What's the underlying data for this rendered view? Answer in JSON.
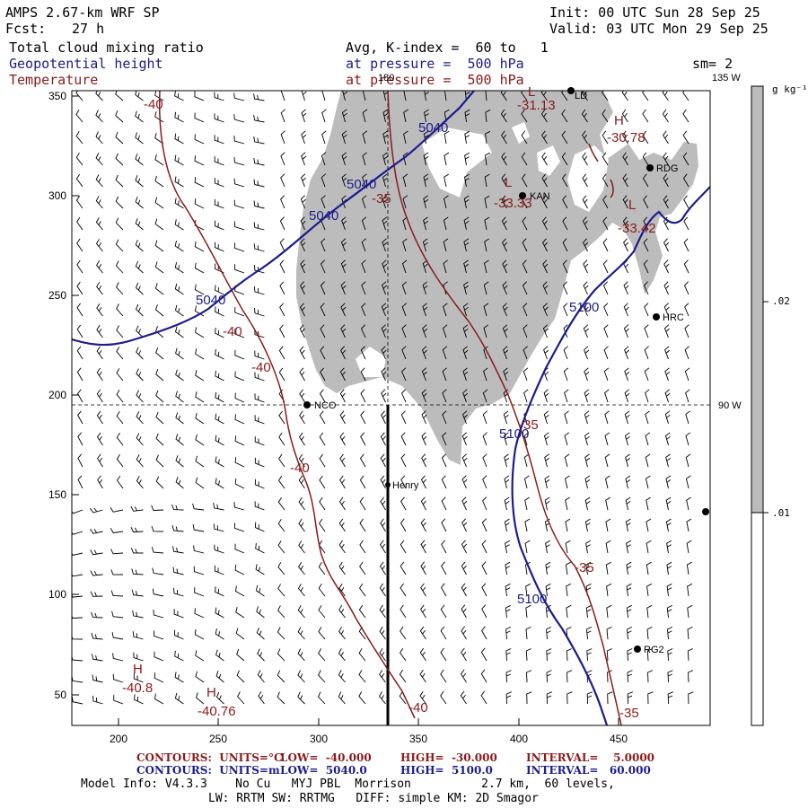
{
  "header": {
    "model": "AMPS 2.67-km WRF SP",
    "fcst_label": "Fcst:",
    "fcst_value": "27 h",
    "init": "Init: 00 UTC Sun 28 Sep 25",
    "valid": "Valid: 03 UTC Mon 29 Sep 25",
    "field1": "Total cloud mixing ratio",
    "field2": "Geopotential height",
    "field3": "Temperature",
    "avg": "Avg, K-index =  60 to   1",
    "pressure1": "at pressure =  500 hPa",
    "pressure2": "at pressure =  500 hPa",
    "sm": "sm= 2"
  },
  "colors": {
    "height_contour": "#1c1c8c",
    "temperature_contour": "#8b1a1a",
    "cloud_fill": "#bcbcbc",
    "colorbar_upper": "#bcbcbc"
  },
  "map": {
    "x_ticks": [
      "200",
      "250",
      "300",
      "350",
      "400",
      "450"
    ],
    "y_ticks": [
      "50",
      "100",
      "150",
      "200",
      "250",
      "300",
      "350"
    ],
    "meridian_180": "180",
    "meridian_135w": "135 W",
    "meridian_90w": "90 W",
    "stations": [
      {
        "id": "NCO",
        "label": "NCO"
      },
      {
        "id": "Henry",
        "label": "Henry"
      },
      {
        "id": "KAN",
        "label": "KAN"
      },
      {
        "id": "RDG",
        "label": "RDG"
      },
      {
        "id": "HRC",
        "label": "HRC"
      },
      {
        "id": "RG2",
        "label": "RG2"
      },
      {
        "id": "LD",
        "label": "LD"
      }
    ],
    "height_labels": [
      "5040",
      "5040",
      "5040",
      "5040",
      "5100",
      "5100",
      "5100"
    ],
    "temp_labels": [
      "-40",
      "-40",
      "-40",
      "-40",
      "-40",
      "-35",
      "-35",
      "-35",
      "-35"
    ],
    "extrema": [
      {
        "type": "L",
        "value": "-31.13"
      },
      {
        "type": "H",
        "value": "-30.78"
      },
      {
        "type": "L",
        "value": "-33.33"
      },
      {
        "type": "L",
        "value": "-33.42"
      },
      {
        "type": "H",
        "value": "-40.8"
      },
      {
        "type": "H",
        "value": "-40.76"
      }
    ]
  },
  "colorbar": {
    "units": "g kg⁻¹",
    "levels": [
      ".02",
      ".01"
    ]
  },
  "footer": {
    "line1": {
      "contours": "CONTOURS:  UNITS=°C",
      "low": "LOW=  -40.000",
      "high": "HIGH=  -30.000",
      "interval": "INTERVAL=    5.0000"
    },
    "line2": {
      "contours": "CONTOURS:  UNITS=m",
      "low": "LOW=  5040.0",
      "high": "HIGH=  5100.0",
      "interval": "INTERVAL=   60.000"
    },
    "line3": "Model Info: V4.3.3    No Cu   MYJ PBL  Morrison          2.7 km,  60 levels,",
    "line4": "LW: RRTM SW: RRTMG   DIFF: simple KM: 2D Smagor"
  }
}
